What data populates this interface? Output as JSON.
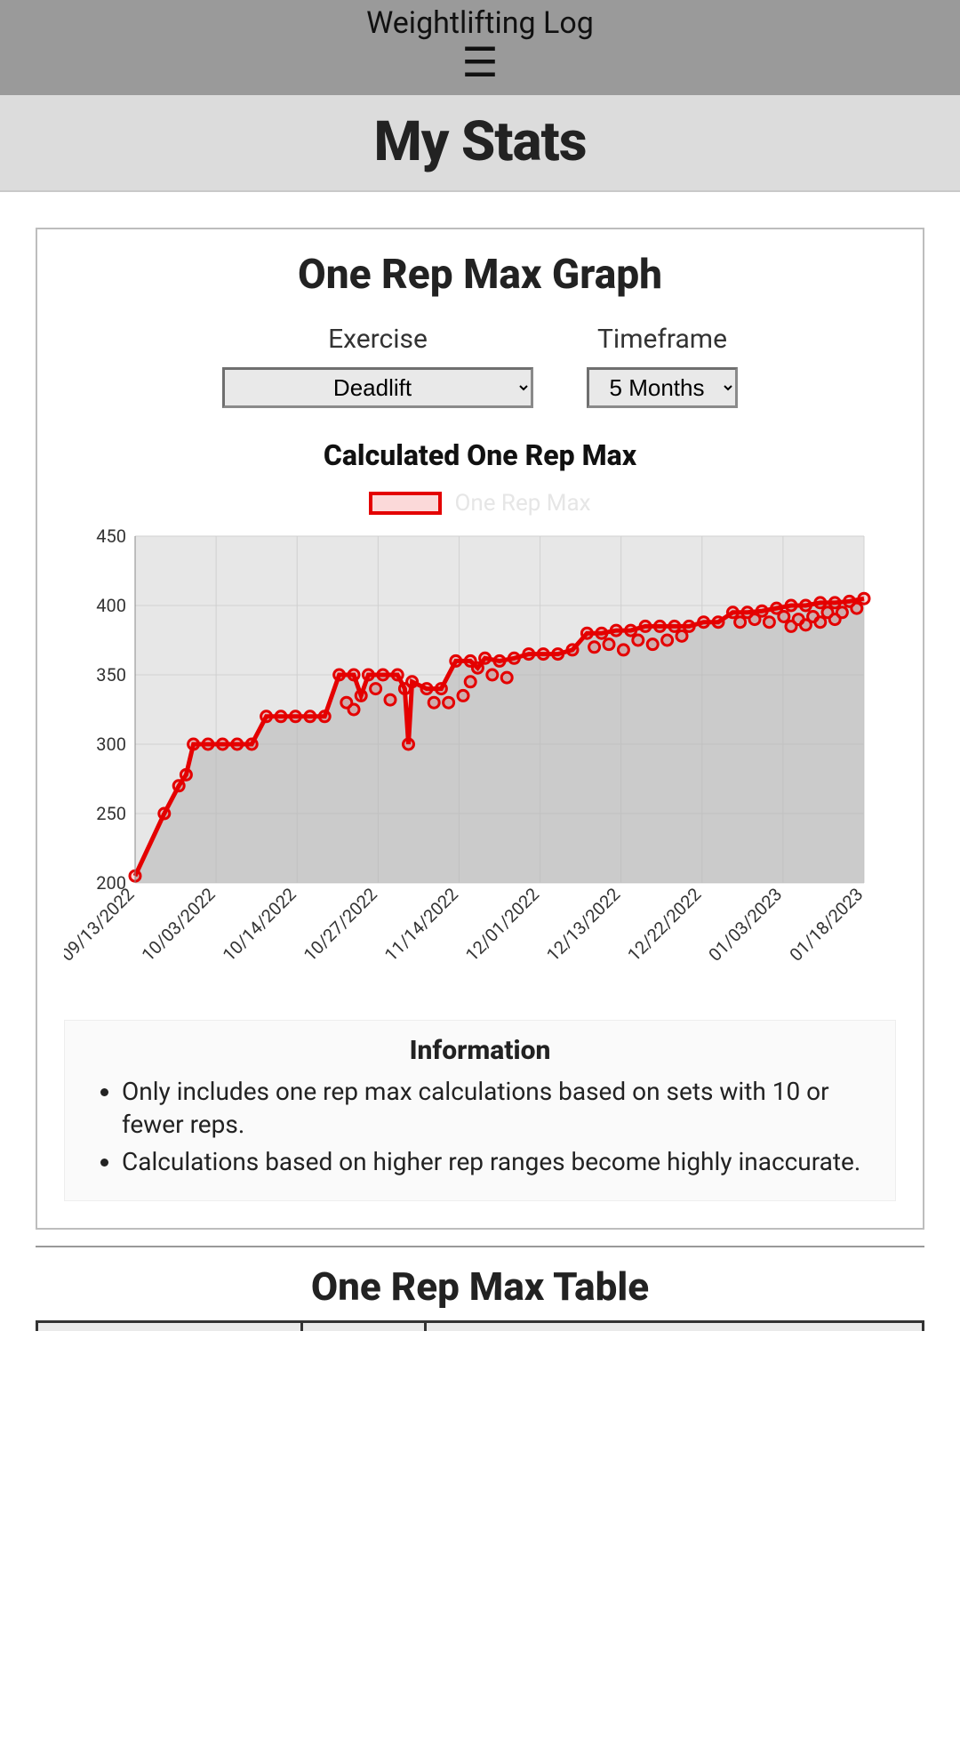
{
  "header": {
    "app_title": "Weightlifting Log",
    "menu_glyph": "☰",
    "page_title": "My Stats"
  },
  "graph_panel": {
    "title": "One Rep Max Graph",
    "controls": {
      "exercise_label": "Exercise",
      "exercise_selected": "Deadlift",
      "timeframe_label": "Timeframe",
      "timeframe_selected": "5 Months"
    },
    "chart": {
      "type": "line",
      "title": "Calculated One Rep Max",
      "legend_label": "One Rep Max",
      "series_color": "#e40000",
      "marker_stroke": "#e40000",
      "plot_bg": "#e7e7e7",
      "grid_color": "#d0d0d0",
      "line_width": 5,
      "marker_radius": 6,
      "ylim": [
        200,
        450
      ],
      "ytick_step": 50,
      "yticks": [
        200,
        250,
        300,
        350,
        400,
        450
      ],
      "x_labels": [
        "09/13/2022",
        "10/03/2022",
        "10/14/2022",
        "10/27/2022",
        "11/14/2022",
        "12/01/2022",
        "12/13/2022",
        "12/22/2022",
        "01/03/2023",
        "01/18/2023"
      ],
      "points": [
        {
          "x": 0.0,
          "y": 205
        },
        {
          "x": 0.04,
          "y": 250
        },
        {
          "x": 0.06,
          "y": 270
        },
        {
          "x": 0.07,
          "y": 278
        },
        {
          "x": 0.08,
          "y": 300
        },
        {
          "x": 0.1,
          "y": 300
        },
        {
          "x": 0.12,
          "y": 300
        },
        {
          "x": 0.14,
          "y": 300
        },
        {
          "x": 0.16,
          "y": 300
        },
        {
          "x": 0.18,
          "y": 320
        },
        {
          "x": 0.2,
          "y": 320
        },
        {
          "x": 0.22,
          "y": 320
        },
        {
          "x": 0.24,
          "y": 320
        },
        {
          "x": 0.26,
          "y": 320
        },
        {
          "x": 0.28,
          "y": 350
        },
        {
          "x": 0.3,
          "y": 350
        },
        {
          "x": 0.31,
          "y": 335
        },
        {
          "x": 0.32,
          "y": 350
        },
        {
          "x": 0.34,
          "y": 350
        },
        {
          "x": 0.36,
          "y": 350
        },
        {
          "x": 0.37,
          "y": 340
        },
        {
          "x": 0.375,
          "y": 300
        },
        {
          "x": 0.38,
          "y": 345
        },
        {
          "x": 0.4,
          "y": 340
        },
        {
          "x": 0.42,
          "y": 340
        },
        {
          "x": 0.44,
          "y": 360
        },
        {
          "x": 0.46,
          "y": 360
        },
        {
          "x": 0.47,
          "y": 355
        },
        {
          "x": 0.48,
          "y": 362
        },
        {
          "x": 0.5,
          "y": 360
        },
        {
          "x": 0.52,
          "y": 362
        },
        {
          "x": 0.54,
          "y": 365
        },
        {
          "x": 0.56,
          "y": 365
        },
        {
          "x": 0.58,
          "y": 365
        },
        {
          "x": 0.6,
          "y": 368
        },
        {
          "x": 0.62,
          "y": 380
        },
        {
          "x": 0.64,
          "y": 380
        },
        {
          "x": 0.66,
          "y": 382
        },
        {
          "x": 0.68,
          "y": 382
        },
        {
          "x": 0.7,
          "y": 385
        },
        {
          "x": 0.72,
          "y": 385
        },
        {
          "x": 0.74,
          "y": 385
        },
        {
          "x": 0.76,
          "y": 385
        },
        {
          "x": 0.78,
          "y": 388
        },
        {
          "x": 0.8,
          "y": 388
        },
        {
          "x": 0.82,
          "y": 395
        },
        {
          "x": 0.84,
          "y": 395
        },
        {
          "x": 0.86,
          "y": 396
        },
        {
          "x": 0.88,
          "y": 398
        },
        {
          "x": 0.9,
          "y": 400
        },
        {
          "x": 0.92,
          "y": 400
        },
        {
          "x": 0.94,
          "y": 402
        },
        {
          "x": 0.96,
          "y": 402
        },
        {
          "x": 0.98,
          "y": 403
        },
        {
          "x": 1.0,
          "y": 405
        }
      ],
      "scatter_extra": [
        {
          "x": 0.29,
          "y": 330
        },
        {
          "x": 0.3,
          "y": 325
        },
        {
          "x": 0.33,
          "y": 340
        },
        {
          "x": 0.35,
          "y": 332
        },
        {
          "x": 0.41,
          "y": 330
        },
        {
          "x": 0.43,
          "y": 330
        },
        {
          "x": 0.45,
          "y": 335
        },
        {
          "x": 0.46,
          "y": 345
        },
        {
          "x": 0.49,
          "y": 350
        },
        {
          "x": 0.51,
          "y": 348
        },
        {
          "x": 0.63,
          "y": 370
        },
        {
          "x": 0.65,
          "y": 372
        },
        {
          "x": 0.67,
          "y": 368
        },
        {
          "x": 0.69,
          "y": 375
        },
        {
          "x": 0.71,
          "y": 372
        },
        {
          "x": 0.73,
          "y": 375
        },
        {
          "x": 0.75,
          "y": 378
        },
        {
          "x": 0.83,
          "y": 388
        },
        {
          "x": 0.85,
          "y": 390
        },
        {
          "x": 0.87,
          "y": 388
        },
        {
          "x": 0.89,
          "y": 392
        },
        {
          "x": 0.91,
          "y": 390
        },
        {
          "x": 0.93,
          "y": 392
        },
        {
          "x": 0.95,
          "y": 395
        },
        {
          "x": 0.97,
          "y": 395
        },
        {
          "x": 0.99,
          "y": 398
        },
        {
          "x": 0.9,
          "y": 385
        },
        {
          "x": 0.92,
          "y": 386
        },
        {
          "x": 0.94,
          "y": 388
        },
        {
          "x": 0.96,
          "y": 390
        }
      ]
    },
    "info": {
      "title": "Information",
      "bullets": [
        "Only includes one rep max calculations based on sets with 10 or fewer reps.",
        "Calculations based on higher rep ranges become highly inaccurate."
      ]
    }
  },
  "table_section": {
    "title": "One Rep Max Table",
    "col_widths_pct": [
      30,
      14,
      56
    ]
  }
}
